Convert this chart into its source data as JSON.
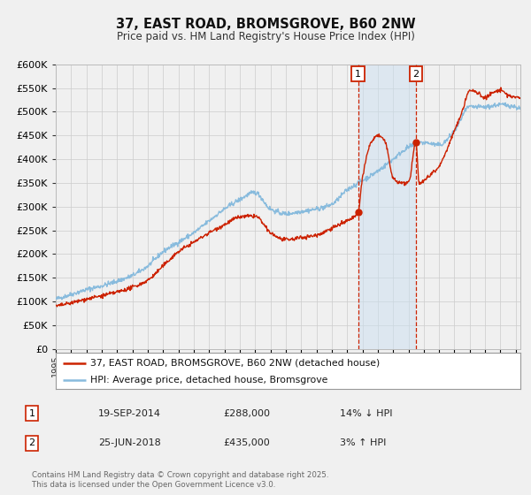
{
  "title": "37, EAST ROAD, BROMSGROVE, B60 2NW",
  "subtitle": "Price paid vs. HM Land Registry's House Price Index (HPI)",
  "ylim": [
    0,
    600000
  ],
  "xlim_start": 1995.0,
  "xlim_end": 2025.3,
  "hpi_color": "#88bbdd",
  "price_color": "#cc2200",
  "ann1_x": 2014.72,
  "ann2_x": 2018.49,
  "ann1_label": "1",
  "ann2_label": "2",
  "annotation1": {
    "date": "19-SEP-2014",
    "price": "£288,000",
    "note": "14% ↓ HPI"
  },
  "annotation2": {
    "date": "25-JUN-2018",
    "price": "£435,000",
    "note": "3% ↑ HPI"
  },
  "legend_line1": "37, EAST ROAD, BROMSGROVE, B60 2NW (detached house)",
  "legend_line2": "HPI: Average price, detached house, Bromsgrove",
  "footer": "Contains HM Land Registry data © Crown copyright and database right 2025.\nThis data is licensed under the Open Government Licence v3.0.",
  "bg_color": "#f0f0f0",
  "plot_bg": "#f0f0f0",
  "grid_color": "#cccccc",
  "shade_color": "#cce0f0"
}
